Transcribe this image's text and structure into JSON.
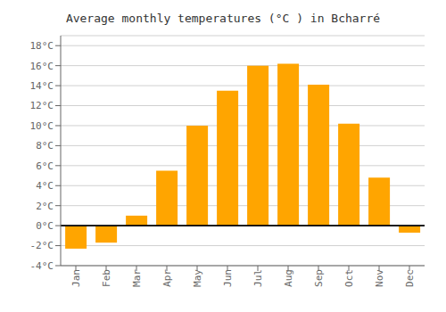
{
  "chart_data": {
    "type": "bar",
    "title": "Average monthly temperatures (°C ) in Bcharré",
    "categories": [
      "Jan",
      "Feb",
      "Mar",
      "Apr",
      "May",
      "Jun",
      "Jul",
      "Aug",
      "Sep",
      "Oct",
      "Nov",
      "Dec"
    ],
    "values": [
      -2.3,
      -1.7,
      1.0,
      5.5,
      10.0,
      13.5,
      16.0,
      16.2,
      14.1,
      10.2,
      4.8,
      -0.7
    ],
    "color": "#FFA500",
    "ylim": [
      -4,
      19
    ],
    "yticks": [
      {
        "value": -4,
        "label": "-4°C"
      },
      {
        "value": -2,
        "label": "-2°C"
      },
      {
        "value": 0,
        "label": "0°C"
      },
      {
        "value": 2,
        "label": "2°C"
      },
      {
        "value": 4,
        "label": "4°C"
      },
      {
        "value": 6,
        "label": "6°C"
      },
      {
        "value": 8,
        "label": "8°C"
      },
      {
        "value": 10,
        "label": "10°C"
      },
      {
        "value": 12,
        "label": "12°C"
      },
      {
        "value": 14,
        "label": "14°C"
      },
      {
        "value": 16,
        "label": "16°C"
      },
      {
        "value": 18,
        "label": "18°C"
      }
    ],
    "grid": true
  }
}
